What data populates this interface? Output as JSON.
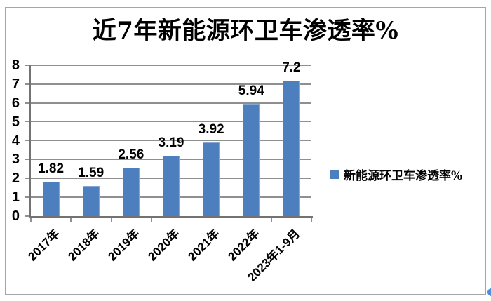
{
  "title": "近7年新能源环卫车渗透率%",
  "legend": {
    "label": "新能源环卫车渗透率%"
  },
  "chart_data": {
    "type": "bar",
    "title": "近7年新能源环卫车渗透率%",
    "categories": [
      "2017年",
      "2018年",
      "2019年",
      "2020年",
      "2021年",
      "2022年",
      "2023年1-9月"
    ],
    "values": [
      1.82,
      1.59,
      2.56,
      3.19,
      3.92,
      5.94,
      7.2
    ],
    "data_labels": [
      "1.82",
      "1.59",
      "2.56",
      "3.19",
      "3.92",
      "5.94",
      "7.2"
    ],
    "series": [
      {
        "name": "新能源环卫车渗透率%",
        "values": [
          1.82,
          1.59,
          2.56,
          3.19,
          3.92,
          5.94,
          7.2
        ]
      }
    ],
    "xlabel": "",
    "ylabel": "",
    "ylim": [
      0,
      8
    ],
    "yticks": [
      0,
      1,
      2,
      3,
      4,
      5,
      6,
      7,
      8
    ],
    "grid": true,
    "legend_position": "right",
    "x_tick_rotation_deg": 45
  },
  "colors": {
    "background": "#ffffff",
    "text": "#000000",
    "bar_fill": "#4d7ebd",
    "bar_border": "#84a7d4",
    "gridline": "#8f8f8f",
    "axis": "#737373",
    "frame_border": "#a6a6a6",
    "corner_dot": "#4a90d8"
  }
}
